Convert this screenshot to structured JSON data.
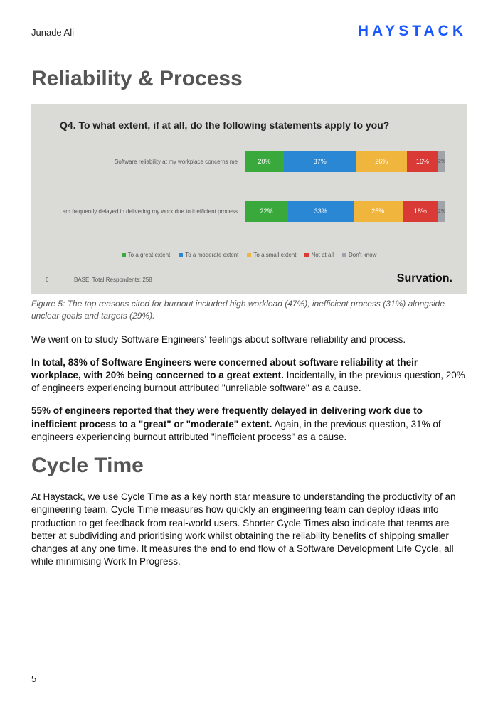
{
  "header": {
    "author": "Junade Ali",
    "logo": "HAYSTACK"
  },
  "section1_title": "Reliability & Process",
  "figure5": {
    "chart_bg": "#dadad6",
    "title": "Q4. To what extent, if at all, do the following statements apply to you?",
    "rows": [
      {
        "label": "Software reliability at my workplace concerns me",
        "segments": [
          {
            "value": "20%",
            "color": "#39a93b"
          },
          {
            "value": "37%",
            "color": "#2a87d4"
          },
          {
            "value": "26%",
            "color": "#f0b53c"
          },
          {
            "value": "16%",
            "color": "#d93a36"
          },
          {
            "value": "2%",
            "color": "#a0a3a7"
          }
        ]
      },
      {
        "label": "I am frequently delayed in delivering my work due to inefficient process",
        "segments": [
          {
            "value": "22%",
            "color": "#39a93b"
          },
          {
            "value": "33%",
            "color": "#2a87d4"
          },
          {
            "value": "25%",
            "color": "#f0b53c"
          },
          {
            "value": "18%",
            "color": "#d93a36"
          },
          {
            "value": "2%",
            "color": "#a0a3a7"
          }
        ]
      }
    ],
    "legend": [
      {
        "label": "To a great extent",
        "color": "#39a93b"
      },
      {
        "label": "To a moderate extent",
        "color": "#2a87d4"
      },
      {
        "label": "To a small extent",
        "color": "#f0b53c"
      },
      {
        "label": "Not at all",
        "color": "#d93a36"
      },
      {
        "label": "Don't know",
        "color": "#a0a3a7"
      }
    ],
    "slide_number": "6",
    "base_text": "BASE: Total Respondents: 258",
    "source": "Survation.",
    "caption": "Figure 5: The top reasons cited for burnout included high workload (47%), inefficient process (31%) alongside unclear goals and targets (29%)."
  },
  "para1": "We went on to study Software Engineers' feelings about software reliability and process.",
  "para2_bold": "In total, 83% of Software Engineers were concerned about software reliability at their workplace, with 20% being concerned to a great extent.",
  "para2_rest": " Incidentally, in the previous question, 20% of engineers experiencing burnout attributed \"unreliable software\" as a cause.",
  "para3_bold": "55% of engineers reported that they were frequently delayed in delivering work due to inefficient process to a \"great\" or \"moderate\" extent.",
  "para3_rest": " Again, in the previous question, 31% of engineers experiencing burnout attributed \"inefficient process\" as a cause.",
  "section2_title": "Cycle Time",
  "para4": "At Haystack, we use Cycle Time as a key north star measure to understanding the productivity of an engineering team. Cycle Time measures how quickly an engineering team can deploy ideas into production to get feedback from real-world users. Shorter Cycle Times also indicate that teams are better at subdividing and prioritising work whilst obtaining the reliability benefits of shipping smaller changes at any one time. It measures the end to end flow of a Software Development Life Cycle, all while minimising Work In Progress.",
  "page_number": "5"
}
